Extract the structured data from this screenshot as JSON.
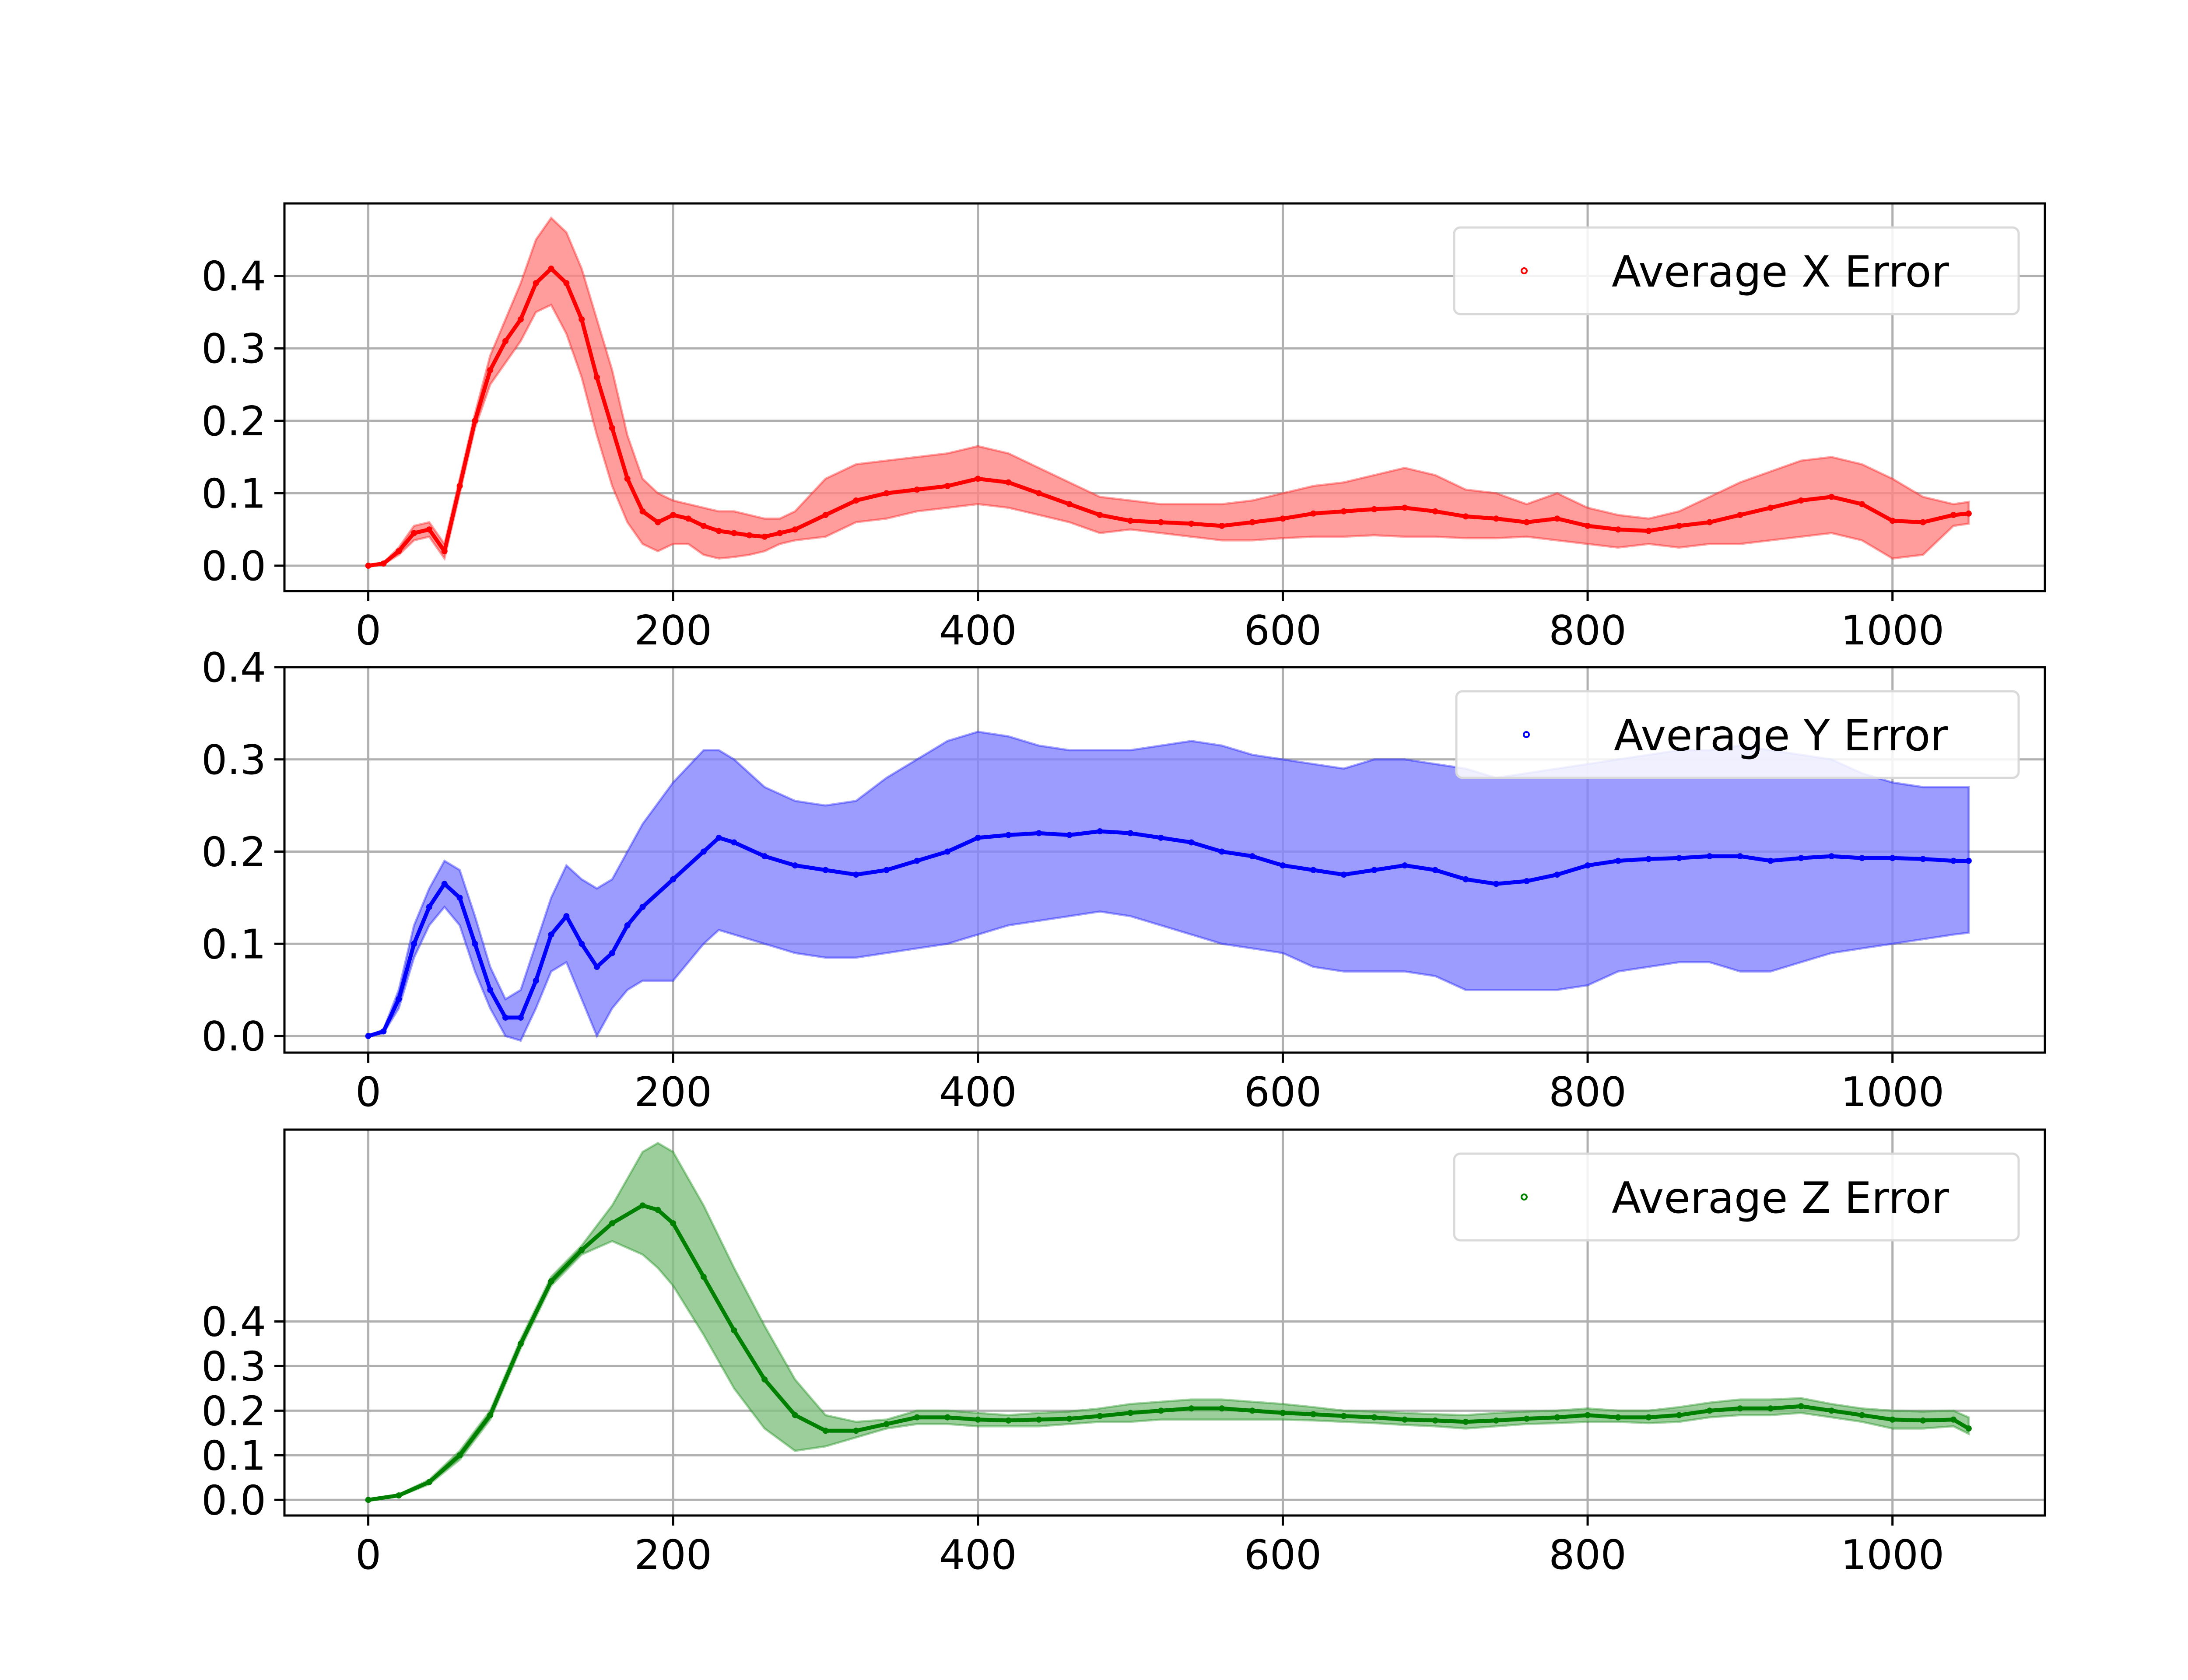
{
  "chart_data": [
    {
      "type": "line",
      "xlim": [
        -55,
        1100
      ],
      "ylim": [
        -0.035,
        0.5
      ],
      "xticks": [
        0,
        200,
        400,
        600,
        800,
        1000
      ],
      "xtick_labels": [
        "0",
        "200",
        "400",
        "600",
        "800",
        "1000"
      ],
      "yticks": [
        0.0,
        0.1,
        0.2,
        0.3,
        0.4
      ],
      "ytick_labels": [
        "0.0",
        "0.1",
        "0.2",
        "0.3",
        "0.4"
      ],
      "grid": true,
      "legend_position": "top-right",
      "color": "#ff0000",
      "band_color": "#ff8080",
      "series": [
        {
          "name": "Average X Error",
          "x": [
            0,
            10,
            20,
            30,
            40,
            50,
            60,
            70,
            80,
            90,
            100,
            110,
            120,
            130,
            140,
            150,
            160,
            170,
            180,
            190,
            200,
            210,
            220,
            230,
            240,
            250,
            260,
            270,
            280,
            300,
            320,
            340,
            360,
            380,
            400,
            420,
            440,
            460,
            480,
            500,
            520,
            540,
            560,
            580,
            600,
            620,
            640,
            660,
            680,
            700,
            720,
            740,
            760,
            780,
            800,
            820,
            840,
            860,
            880,
            900,
            920,
            940,
            960,
            980,
            1000,
            1020,
            1040,
            1050
          ],
          "values": [
            0.0,
            0.003,
            0.02,
            0.045,
            0.05,
            0.02,
            0.11,
            0.2,
            0.27,
            0.31,
            0.34,
            0.39,
            0.41,
            0.39,
            0.34,
            0.26,
            0.19,
            0.12,
            0.075,
            0.06,
            0.07,
            0.065,
            0.055,
            0.048,
            0.045,
            0.042,
            0.04,
            0.045,
            0.05,
            0.07,
            0.09,
            0.1,
            0.105,
            0.11,
            0.12,
            0.115,
            0.1,
            0.085,
            0.07,
            0.062,
            0.06,
            0.058,
            0.055,
            0.06,
            0.065,
            0.072,
            0.075,
            0.078,
            0.08,
            0.075,
            0.068,
            0.065,
            0.06,
            0.065,
            0.055,
            0.05,
            0.048,
            0.055,
            0.06,
            0.07,
            0.08,
            0.09,
            0.095,
            0.085,
            0.062,
            0.06,
            0.07,
            0.072
          ],
          "lower": [
            0.0,
            0.002,
            0.015,
            0.035,
            0.04,
            0.01,
            0.1,
            0.19,
            0.25,
            0.28,
            0.31,
            0.35,
            0.36,
            0.32,
            0.26,
            0.18,
            0.11,
            0.06,
            0.03,
            0.02,
            0.03,
            0.03,
            0.015,
            0.01,
            0.012,
            0.015,
            0.02,
            0.03,
            0.035,
            0.04,
            0.06,
            0.065,
            0.075,
            0.08,
            0.085,
            0.08,
            0.07,
            0.06,
            0.045,
            0.05,
            0.045,
            0.04,
            0.035,
            0.035,
            0.038,
            0.04,
            0.04,
            0.042,
            0.04,
            0.04,
            0.038,
            0.038,
            0.04,
            0.035,
            0.03,
            0.025,
            0.03,
            0.025,
            0.03,
            0.03,
            0.035,
            0.04,
            0.045,
            0.035,
            0.01,
            0.015,
            0.055,
            0.058
          ],
          "upper": [
            0.0,
            0.004,
            0.025,
            0.055,
            0.06,
            0.03,
            0.12,
            0.21,
            0.29,
            0.34,
            0.39,
            0.45,
            0.48,
            0.46,
            0.41,
            0.34,
            0.27,
            0.18,
            0.12,
            0.1,
            0.09,
            0.085,
            0.08,
            0.075,
            0.075,
            0.07,
            0.065,
            0.065,
            0.075,
            0.12,
            0.14,
            0.145,
            0.15,
            0.155,
            0.165,
            0.155,
            0.135,
            0.115,
            0.095,
            0.09,
            0.085,
            0.085,
            0.085,
            0.09,
            0.1,
            0.11,
            0.115,
            0.125,
            0.135,
            0.125,
            0.105,
            0.1,
            0.085,
            0.1,
            0.08,
            0.07,
            0.065,
            0.075,
            0.095,
            0.115,
            0.13,
            0.145,
            0.15,
            0.14,
            0.12,
            0.095,
            0.085,
            0.088
          ]
        }
      ]
    },
    {
      "type": "line",
      "xlim": [
        -55,
        1100
      ],
      "ylim": [
        -0.018,
        0.4
      ],
      "xticks": [
        0,
        200,
        400,
        600,
        800,
        1000
      ],
      "xtick_labels": [
        "0",
        "200",
        "400",
        "600",
        "800",
        "1000"
      ],
      "yticks": [
        0.0,
        0.1,
        0.2,
        0.3,
        0.4
      ],
      "ytick_labels": [
        "0.0",
        "0.1",
        "0.2",
        "0.3",
        "0.4"
      ],
      "grid": true,
      "legend_position": "top-right",
      "color": "#0000ff",
      "band_color": "#8080ff",
      "series": [
        {
          "name": "Average Y Error",
          "x": [
            0,
            10,
            20,
            30,
            40,
            50,
            60,
            70,
            80,
            90,
            100,
            110,
            120,
            130,
            140,
            150,
            160,
            170,
            180,
            200,
            220,
            230,
            240,
            260,
            280,
            300,
            320,
            340,
            360,
            380,
            400,
            420,
            440,
            460,
            480,
            500,
            520,
            540,
            560,
            580,
            600,
            620,
            640,
            660,
            680,
            700,
            720,
            740,
            760,
            780,
            800,
            820,
            840,
            860,
            880,
            900,
            920,
            940,
            960,
            980,
            1000,
            1020,
            1040,
            1050
          ],
          "values": [
            0.0,
            0.005,
            0.04,
            0.1,
            0.14,
            0.165,
            0.15,
            0.1,
            0.05,
            0.02,
            0.02,
            0.06,
            0.11,
            0.13,
            0.1,
            0.075,
            0.09,
            0.12,
            0.14,
            0.17,
            0.2,
            0.215,
            0.21,
            0.195,
            0.185,
            0.18,
            0.175,
            0.18,
            0.19,
            0.2,
            0.215,
            0.218,
            0.22,
            0.218,
            0.222,
            0.22,
            0.215,
            0.21,
            0.2,
            0.195,
            0.185,
            0.18,
            0.175,
            0.18,
            0.185,
            0.18,
            0.17,
            0.165,
            0.168,
            0.175,
            0.185,
            0.19,
            0.192,
            0.193,
            0.195,
            0.195,
            0.19,
            0.193,
            0.195,
            0.193,
            0.193,
            0.192,
            0.19,
            0.19
          ],
          "lower": [
            0.0,
            0.003,
            0.03,
            0.085,
            0.12,
            0.14,
            0.12,
            0.07,
            0.03,
            0.0,
            -0.005,
            0.03,
            0.07,
            0.08,
            0.04,
            0.0,
            0.03,
            0.05,
            0.06,
            0.06,
            0.1,
            0.115,
            0.11,
            0.1,
            0.09,
            0.085,
            0.085,
            0.09,
            0.095,
            0.1,
            0.11,
            0.12,
            0.125,
            0.13,
            0.135,
            0.13,
            0.12,
            0.11,
            0.1,
            0.095,
            0.09,
            0.075,
            0.07,
            0.07,
            0.07,
            0.065,
            0.05,
            0.05,
            0.05,
            0.05,
            0.055,
            0.07,
            0.075,
            0.08,
            0.08,
            0.07,
            0.07,
            0.08,
            0.09,
            0.095,
            0.1,
            0.105,
            0.11,
            0.112
          ],
          "upper": [
            0.0,
            0.007,
            0.05,
            0.12,
            0.16,
            0.19,
            0.18,
            0.13,
            0.075,
            0.04,
            0.05,
            0.1,
            0.15,
            0.185,
            0.17,
            0.16,
            0.17,
            0.2,
            0.23,
            0.275,
            0.31,
            0.31,
            0.3,
            0.27,
            0.255,
            0.25,
            0.255,
            0.28,
            0.3,
            0.32,
            0.33,
            0.325,
            0.315,
            0.31,
            0.31,
            0.31,
            0.315,
            0.32,
            0.315,
            0.305,
            0.3,
            0.295,
            0.29,
            0.3,
            0.3,
            0.295,
            0.29,
            0.28,
            0.285,
            0.29,
            0.295,
            0.3,
            0.305,
            0.31,
            0.31,
            0.315,
            0.31,
            0.305,
            0.3,
            0.285,
            0.275,
            0.27,
            0.27,
            0.27
          ]
        }
      ]
    },
    {
      "type": "line",
      "xlim": [
        -55,
        1100
      ],
      "ylim": [
        -0.035,
        0.83
      ],
      "xticks": [
        0,
        200,
        400,
        600,
        800,
        1000
      ],
      "xtick_labels": [
        "0",
        "200",
        "400",
        "600",
        "800",
        "1000"
      ],
      "yticks": [
        0.0,
        0.1,
        0.2,
        0.3,
        0.4
      ],
      "ytick_labels": [
        "0.0",
        "0.1",
        "0.2",
        "0.3",
        "0.4"
      ],
      "grid": true,
      "legend_position": "top-right",
      "color": "#008000",
      "band_color": "#80c080",
      "series": [
        {
          "name": "Average Z Error",
          "x": [
            0,
            20,
            40,
            60,
            80,
            100,
            120,
            140,
            160,
            180,
            190,
            200,
            220,
            240,
            260,
            280,
            300,
            320,
            340,
            360,
            380,
            400,
            420,
            440,
            460,
            480,
            500,
            520,
            540,
            560,
            580,
            600,
            620,
            640,
            660,
            680,
            700,
            720,
            740,
            760,
            780,
            800,
            820,
            840,
            860,
            880,
            900,
            920,
            940,
            960,
            980,
            1000,
            1020,
            1040,
            1050
          ],
          "values": [
            0.0,
            0.01,
            0.04,
            0.1,
            0.19,
            0.35,
            0.49,
            0.56,
            0.62,
            0.66,
            0.65,
            0.62,
            0.5,
            0.38,
            0.27,
            0.19,
            0.155,
            0.155,
            0.17,
            0.185,
            0.185,
            0.18,
            0.178,
            0.18,
            0.182,
            0.188,
            0.195,
            0.2,
            0.205,
            0.205,
            0.2,
            0.195,
            0.192,
            0.188,
            0.185,
            0.18,
            0.178,
            0.175,
            0.178,
            0.182,
            0.185,
            0.19,
            0.185,
            0.185,
            0.19,
            0.2,
            0.205,
            0.205,
            0.21,
            0.2,
            0.19,
            0.18,
            0.178,
            0.18,
            0.16
          ],
          "lower": [
            0.0,
            0.008,
            0.035,
            0.09,
            0.18,
            0.34,
            0.48,
            0.55,
            0.58,
            0.55,
            0.52,
            0.48,
            0.37,
            0.25,
            0.16,
            0.11,
            0.12,
            0.14,
            0.16,
            0.17,
            0.17,
            0.165,
            0.165,
            0.165,
            0.17,
            0.175,
            0.175,
            0.18,
            0.18,
            0.18,
            0.18,
            0.18,
            0.178,
            0.175,
            0.172,
            0.168,
            0.165,
            0.16,
            0.165,
            0.17,
            0.172,
            0.175,
            0.175,
            0.172,
            0.175,
            0.185,
            0.19,
            0.19,
            0.195,
            0.185,
            0.175,
            0.16,
            0.16,
            0.165,
            0.148
          ],
          "upper": [
            0.0,
            0.012,
            0.045,
            0.11,
            0.2,
            0.36,
            0.5,
            0.57,
            0.66,
            0.78,
            0.8,
            0.78,
            0.66,
            0.52,
            0.39,
            0.27,
            0.19,
            0.175,
            0.18,
            0.2,
            0.2,
            0.195,
            0.19,
            0.195,
            0.198,
            0.205,
            0.215,
            0.22,
            0.225,
            0.225,
            0.22,
            0.215,
            0.208,
            0.2,
            0.198,
            0.195,
            0.192,
            0.19,
            0.195,
            0.198,
            0.2,
            0.205,
            0.2,
            0.2,
            0.208,
            0.218,
            0.225,
            0.225,
            0.228,
            0.215,
            0.205,
            0.2,
            0.198,
            0.2,
            0.185
          ]
        }
      ]
    }
  ]
}
